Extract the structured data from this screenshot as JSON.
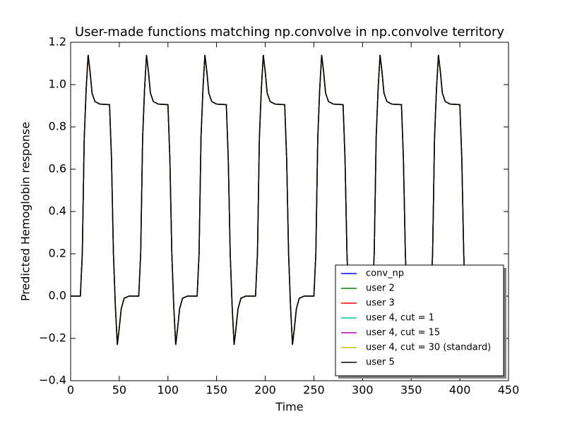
{
  "chart_data": {
    "type": "line",
    "title": "User-made functions matching np.convolve in np.convolve territory",
    "xlabel": "Time",
    "ylabel": "Predicted Hemoglobin response",
    "xlim": [
      0,
      450
    ],
    "xticks": [
      0,
      50,
      100,
      150,
      200,
      250,
      300,
      350,
      400,
      450
    ],
    "ylim": [
      -0.4,
      1.2
    ],
    "yticks": [
      {
        "value": -0.4,
        "label": "−0.4"
      },
      {
        "value": -0.2,
        "label": "−0.2"
      },
      {
        "value": 0,
        "label": "0.0"
      },
      0.2,
      0.4,
      0.6,
      0.8,
      {
        "value": 1,
        "label": "1.0"
      },
      1.2
    ],
    "legend": "lower right",
    "x": [
      0,
      10,
      12,
      14,
      16,
      18,
      20,
      22,
      25,
      30,
      40,
      42,
      44,
      46,
      48,
      50,
      52,
      55,
      60,
      70,
      72,
      74,
      76,
      78,
      80,
      82,
      85,
      90,
      100,
      102,
      104,
      106,
      108,
      110,
      112,
      115,
      120,
      130,
      132,
      134,
      136,
      138,
      140,
      142,
      145,
      150,
      160,
      162,
      164,
      166,
      168,
      170,
      172,
      175,
      180,
      190,
      192,
      194,
      196,
      198,
      200,
      202,
      205,
      210,
      220,
      222,
      224,
      226,
      228,
      230,
      232,
      235,
      240,
      250,
      252,
      254,
      256,
      258,
      260,
      262,
      265,
      270,
      280,
      282,
      284,
      286,
      288,
      290,
      292,
      295,
      300,
      310,
      312,
      314,
      316,
      318,
      320,
      322,
      325,
      330,
      340,
      342,
      344,
      346,
      348,
      350,
      352,
      355,
      360,
      370,
      372,
      374,
      376,
      378,
      380,
      382,
      385,
      390,
      400,
      402,
      404,
      406
    ],
    "series": [
      {
        "name": "conv_np",
        "color": "#0000ff",
        "values": [
          0,
          0,
          0.2,
          0.75,
          0.98,
          1.14,
          1.06,
          0.96,
          0.92,
          0.908,
          0.905,
          0.65,
          0.2,
          -0.05,
          -0.23,
          -0.15,
          -0.06,
          -0.01,
          0,
          0,
          0.2,
          0.75,
          0.98,
          1.14,
          1.06,
          0.96,
          0.92,
          0.908,
          0.905,
          0.65,
          0.2,
          -0.05,
          -0.23,
          -0.15,
          -0.06,
          -0.01,
          0,
          0,
          0.2,
          0.75,
          0.98,
          1.14,
          1.06,
          0.96,
          0.92,
          0.908,
          0.905,
          0.65,
          0.2,
          -0.05,
          -0.23,
          -0.15,
          -0.06,
          -0.01,
          0,
          0,
          0.2,
          0.75,
          0.98,
          1.14,
          1.06,
          0.96,
          0.92,
          0.908,
          0.905,
          0.65,
          0.2,
          -0.05,
          -0.23,
          -0.15,
          -0.06,
          -0.01,
          0,
          0,
          0.2,
          0.75,
          0.98,
          1.14,
          1.06,
          0.96,
          0.92,
          0.908,
          0.905,
          0.65,
          0.2,
          -0.05,
          -0.23,
          -0.15,
          -0.06,
          -0.01,
          0,
          0,
          0.2,
          0.75,
          0.98,
          1.14,
          1.06,
          0.96,
          0.92,
          0.908,
          0.905,
          0.65,
          0.2,
          -0.05,
          -0.23,
          -0.15,
          -0.06,
          -0.01,
          0,
          0,
          0.2,
          0.75,
          0.98,
          1.14,
          1.06,
          0.96,
          0.92,
          0.908,
          0.905,
          0.65,
          0.2,
          -0.05
        ]
      },
      {
        "name": "user 2",
        "color": "#008000",
        "values": [
          0,
          0,
          0.2,
          0.75,
          0.98,
          1.14,
          1.06,
          0.96,
          0.92,
          0.908,
          0.905,
          0.65,
          0.2,
          -0.05,
          -0.23,
          -0.15,
          -0.06,
          -0.01,
          0,
          0,
          0.2,
          0.75,
          0.98,
          1.14,
          1.06,
          0.96,
          0.92,
          0.908,
          0.905,
          0.65,
          0.2,
          -0.05,
          -0.23,
          -0.15,
          -0.06,
          -0.01,
          0,
          0,
          0.2,
          0.75,
          0.98,
          1.14,
          1.06,
          0.96,
          0.92,
          0.908,
          0.905,
          0.65,
          0.2,
          -0.05,
          -0.23,
          -0.15,
          -0.06,
          -0.01,
          0,
          0,
          0.2,
          0.75,
          0.98,
          1.14,
          1.06,
          0.96,
          0.92,
          0.908,
          0.905,
          0.65,
          0.2,
          -0.05,
          -0.23,
          -0.15,
          -0.06,
          -0.01,
          0,
          0,
          0.2,
          0.75,
          0.98,
          1.14,
          1.06,
          0.96,
          0.92,
          0.908,
          0.905,
          0.65,
          0.2,
          -0.05,
          -0.23,
          -0.15,
          -0.06,
          -0.01,
          0,
          0,
          0.2,
          0.75,
          0.98,
          1.14,
          1.06,
          0.96,
          0.92,
          0.908,
          0.905,
          0.65,
          0.2,
          -0.05,
          -0.23,
          -0.15,
          -0.06,
          -0.01,
          0,
          0,
          0.2,
          0.75,
          0.98,
          1.14,
          1.06,
          0.96,
          0.92,
          0.908,
          0.905,
          0.65,
          0.2,
          -0.05
        ]
      },
      {
        "name": "user 3",
        "color": "#ff0000",
        "values": [
          0,
          0,
          0.2,
          0.75,
          0.98,
          1.14,
          1.06,
          0.96,
          0.92,
          0.908,
          0.905,
          0.65,
          0.2,
          -0.05,
          -0.23,
          -0.15,
          -0.06,
          -0.01,
          0,
          0,
          0.2,
          0.75,
          0.98,
          1.14,
          1.06,
          0.96,
          0.92,
          0.908,
          0.905,
          0.65,
          0.2,
          -0.05,
          -0.23,
          -0.15,
          -0.06,
          -0.01,
          0,
          0,
          0.2,
          0.75,
          0.98,
          1.14,
          1.06,
          0.96,
          0.92,
          0.908,
          0.905,
          0.65,
          0.2,
          -0.05,
          -0.23,
          -0.15,
          -0.06,
          -0.01,
          0,
          0,
          0.2,
          0.75,
          0.98,
          1.14,
          1.06,
          0.96,
          0.92,
          0.908,
          0.905,
          0.65,
          0.2,
          -0.05,
          -0.23,
          -0.15,
          -0.06,
          -0.01,
          0,
          0,
          0.2,
          0.75,
          0.98,
          1.14,
          1.06,
          0.96,
          0.92,
          0.908,
          0.905,
          0.65,
          0.2,
          -0.05,
          -0.23,
          -0.15,
          -0.06,
          -0.01,
          0,
          0,
          0.2,
          0.75,
          0.98,
          1.14,
          1.06,
          0.96,
          0.92,
          0.908,
          0.905,
          0.65,
          0.2,
          -0.05,
          -0.23,
          -0.15,
          -0.06,
          -0.01,
          0,
          0,
          0.2,
          0.75,
          0.98,
          1.14,
          1.06,
          0.96,
          0.92,
          0.908,
          0.905,
          0.65,
          0.2,
          -0.05
        ]
      },
      {
        "name": "user 4, cut = 1",
        "color": "#00bfbf",
        "values": [
          0,
          0,
          0.2,
          0.75,
          0.98,
          1.14,
          1.06,
          0.96,
          0.92,
          0.908,
          0.905,
          0.65,
          0.2,
          -0.05,
          -0.23,
          -0.15,
          -0.06,
          -0.01,
          0,
          0,
          0.2,
          0.75,
          0.98,
          1.14,
          1.06,
          0.96,
          0.92,
          0.908,
          0.905,
          0.65,
          0.2,
          -0.05,
          -0.23,
          -0.15,
          -0.06,
          -0.01,
          0,
          0,
          0.2,
          0.75,
          0.98,
          1.14,
          1.06,
          0.96,
          0.92,
          0.908,
          0.905,
          0.65,
          0.2,
          -0.05,
          -0.23,
          -0.15,
          -0.06,
          -0.01,
          0,
          0,
          0.2,
          0.75,
          0.98,
          1.14,
          1.06,
          0.96,
          0.92,
          0.908,
          0.905,
          0.65,
          0.2,
          -0.05,
          -0.23,
          -0.15,
          -0.06,
          -0.01,
          0,
          0,
          0.2,
          0.75,
          0.98,
          1.14,
          1.06,
          0.96,
          0.92,
          0.908,
          0.905,
          0.65,
          0.2,
          -0.05,
          -0.23,
          -0.15,
          -0.06,
          -0.01,
          0,
          0,
          0.2,
          0.75,
          0.98,
          1.14,
          1.06,
          0.96,
          0.92,
          0.908,
          0.905,
          0.65,
          0.2,
          -0.05,
          -0.23,
          -0.15,
          -0.06,
          -0.01,
          0,
          0,
          0.2,
          0.75,
          0.98,
          1.14,
          1.06,
          0.96,
          0.92,
          0.908,
          0.905,
          0.65,
          0.2,
          -0.05
        ]
      },
      {
        "name": "user 4, cut = 15",
        "color": "#bf00bf",
        "values": [
          0,
          0,
          0.2,
          0.75,
          0.98,
          1.14,
          1.06,
          0.96,
          0.92,
          0.908,
          0.905,
          0.65,
          0.2,
          -0.05,
          -0.23,
          -0.15,
          -0.06,
          -0.01,
          0,
          0,
          0.2,
          0.75,
          0.98,
          1.14,
          1.06,
          0.96,
          0.92,
          0.908,
          0.905,
          0.65,
          0.2,
          -0.05,
          -0.23,
          -0.15,
          -0.06,
          -0.01,
          0,
          0,
          0.2,
          0.75,
          0.98,
          1.14,
          1.06,
          0.96,
          0.92,
          0.908,
          0.905,
          0.65,
          0.2,
          -0.05,
          -0.23,
          -0.15,
          -0.06,
          -0.01,
          0,
          0,
          0.2,
          0.75,
          0.98,
          1.14,
          1.06,
          0.96,
          0.92,
          0.908,
          0.905,
          0.65,
          0.2,
          -0.05,
          -0.23,
          -0.15,
          -0.06,
          -0.01,
          0,
          0,
          0.2,
          0.75,
          0.98,
          1.14,
          1.06,
          0.96,
          0.92,
          0.908,
          0.905,
          0.65,
          0.2,
          -0.05,
          -0.23,
          -0.15,
          -0.06,
          -0.01,
          0,
          0,
          0.2,
          0.75,
          0.98,
          1.14,
          1.06,
          0.96,
          0.92,
          0.908,
          0.905,
          0.65,
          0.2,
          -0.05,
          -0.23,
          -0.15,
          -0.06,
          -0.01,
          0,
          0,
          0.2,
          0.75,
          0.98,
          1.14,
          1.06,
          0.96,
          0.92,
          0.908,
          0.905,
          0.65,
          0.2,
          -0.05
        ]
      },
      {
        "name": "user 4, cut = 30 (standard)",
        "color": "#bfbf00",
        "values": [
          0,
          0,
          0.2,
          0.75,
          0.98,
          1.14,
          1.06,
          0.96,
          0.92,
          0.908,
          0.905,
          0.65,
          0.2,
          -0.05,
          -0.23,
          -0.15,
          -0.06,
          -0.01,
          0,
          0,
          0.2,
          0.75,
          0.98,
          1.14,
          1.06,
          0.96,
          0.92,
          0.908,
          0.905,
          0.65,
          0.2,
          -0.05,
          -0.23,
          -0.15,
          -0.06,
          -0.01,
          0,
          0,
          0.2,
          0.75,
          0.98,
          1.14,
          1.06,
          0.96,
          0.92,
          0.908,
          0.905,
          0.65,
          0.2,
          -0.05,
          -0.23,
          -0.15,
          -0.06,
          -0.01,
          0,
          0,
          0.2,
          0.75,
          0.98,
          1.14,
          1.06,
          0.96,
          0.92,
          0.908,
          0.905,
          0.65,
          0.2,
          -0.05,
          -0.23,
          -0.15,
          -0.06,
          -0.01,
          0,
          0,
          0.2,
          0.75,
          0.98,
          1.14,
          1.06,
          0.96,
          0.92,
          0.908,
          0.905,
          0.65,
          0.2,
          -0.05,
          -0.23,
          -0.15,
          -0.06,
          -0.01,
          0,
          0,
          0.2,
          0.75,
          0.98,
          1.14,
          1.06,
          0.96,
          0.92,
          0.908,
          0.905,
          0.65,
          0.2,
          -0.05,
          -0.23,
          -0.15,
          -0.06,
          -0.01,
          0,
          0,
          0.2,
          0.75,
          0.98,
          1.14,
          1.06,
          0.96,
          0.92,
          0.908,
          0.905,
          0.65,
          0.2,
          -0.05
        ]
      },
      {
        "name": "user 5",
        "color": "#000000",
        "values": [
          0,
          0,
          0.2,
          0.75,
          0.98,
          1.14,
          1.06,
          0.96,
          0.92,
          0.908,
          0.905,
          0.65,
          0.2,
          -0.05,
          -0.23,
          -0.15,
          -0.06,
          -0.01,
          0,
          0,
          0.2,
          0.75,
          0.98,
          1.14,
          1.06,
          0.96,
          0.92,
          0.908,
          0.905,
          0.65,
          0.2,
          -0.05,
          -0.23,
          -0.15,
          -0.06,
          -0.01,
          0,
          0,
          0.2,
          0.75,
          0.98,
          1.14,
          1.06,
          0.96,
          0.92,
          0.908,
          0.905,
          0.65,
          0.2,
          -0.05,
          -0.23,
          -0.15,
          -0.06,
          -0.01,
          0,
          0,
          0.2,
          0.75,
          0.98,
          1.14,
          1.06,
          0.96,
          0.92,
          0.908,
          0.905,
          0.65,
          0.2,
          -0.05,
          -0.23,
          -0.15,
          -0.06,
          -0.01,
          0,
          0,
          0.2,
          0.75,
          0.98,
          1.14,
          1.06,
          0.96,
          0.92,
          0.908,
          0.905,
          0.65,
          0.2,
          -0.05,
          -0.23,
          -0.15,
          -0.06,
          -0.01,
          0,
          0,
          0.2,
          0.75,
          0.98,
          1.14,
          1.06,
          0.96,
          0.92,
          0.908,
          0.905,
          0.65,
          0.2,
          -0.05,
          -0.23,
          -0.15,
          -0.06,
          -0.01,
          0,
          0,
          0.2,
          0.75,
          0.98,
          1.14,
          1.06,
          0.96,
          0.92,
          0.908,
          0.905,
          0.65,
          0.2,
          -0.05
        ]
      }
    ]
  }
}
